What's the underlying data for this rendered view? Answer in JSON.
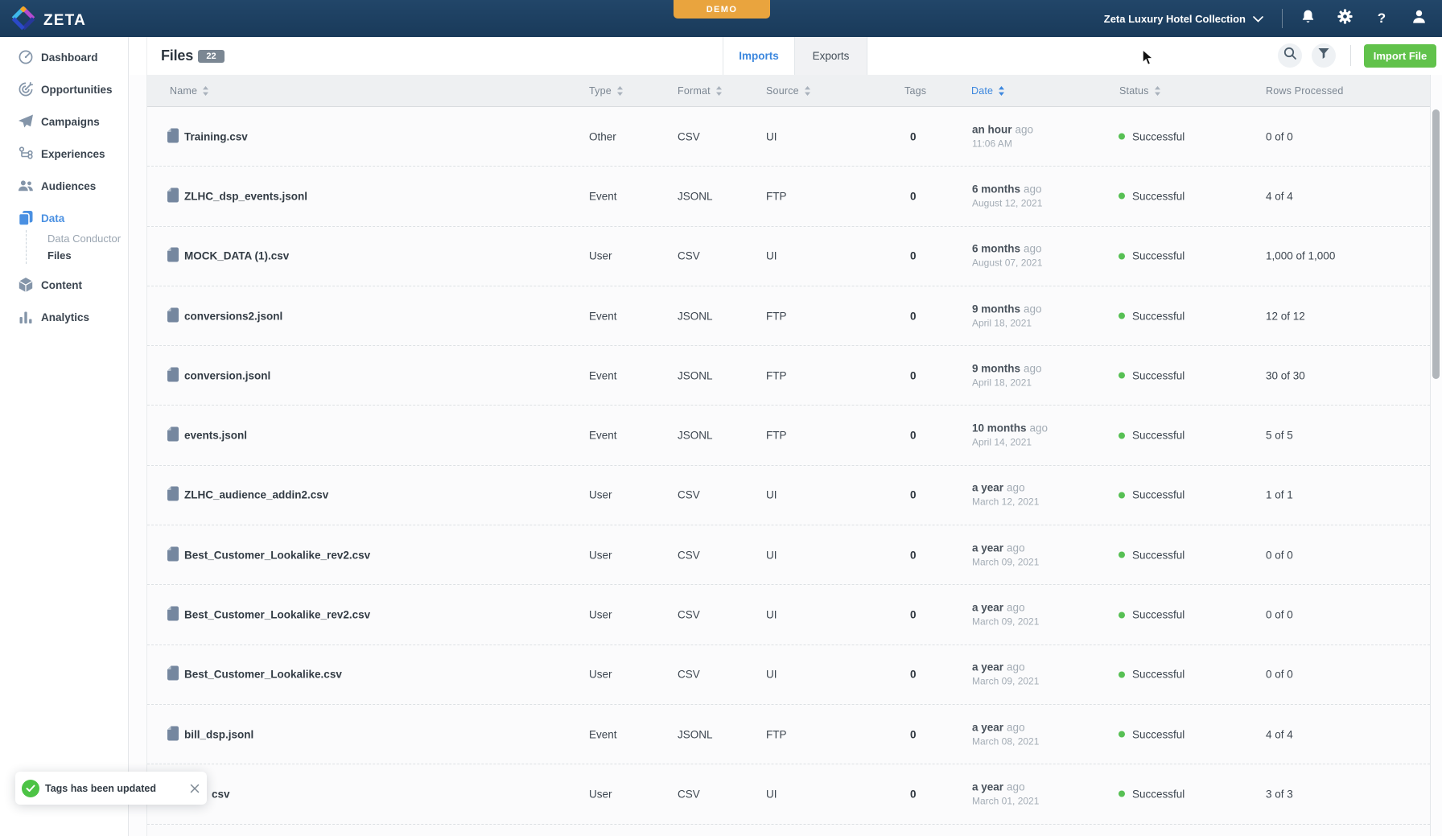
{
  "topbar": {
    "brand": "ZETA",
    "demo_label": "DEMO",
    "account_name": "Zeta Luxury Hotel Collection",
    "icons": [
      "notifications",
      "settings",
      "help",
      "user"
    ]
  },
  "sidebar": {
    "items": [
      {
        "label": "Dashboard",
        "icon": "dashboard"
      },
      {
        "label": "Opportunities",
        "icon": "opportunities"
      },
      {
        "label": "Campaigns",
        "icon": "campaigns"
      },
      {
        "label": "Experiences",
        "icon": "experiences"
      },
      {
        "label": "Audiences",
        "icon": "audiences"
      },
      {
        "label": "Data",
        "icon": "data",
        "active": true,
        "children": [
          {
            "label": "Data Conductor",
            "active": false
          },
          {
            "label": "Files",
            "active": true
          }
        ]
      },
      {
        "label": "Content",
        "icon": "content"
      },
      {
        "label": "Analytics",
        "icon": "analytics"
      }
    ]
  },
  "header": {
    "title": "Files",
    "count": "22",
    "tabs": [
      {
        "label": "Imports",
        "active": true
      },
      {
        "label": "Exports",
        "active": false
      }
    ],
    "import_label": "Import File"
  },
  "table": {
    "columns": [
      {
        "key": "name",
        "label": "Name",
        "sortable": true,
        "sorted": false
      },
      {
        "key": "type",
        "label": "Type",
        "sortable": true,
        "sorted": false
      },
      {
        "key": "format",
        "label": "Format",
        "sortable": true,
        "sorted": false
      },
      {
        "key": "source",
        "label": "Source",
        "sortable": true,
        "sorted": false
      },
      {
        "key": "tags",
        "label": "Tags",
        "sortable": false,
        "sorted": false
      },
      {
        "key": "date",
        "label": "Date",
        "sortable": true,
        "sorted": true
      },
      {
        "key": "status",
        "label": "Status",
        "sortable": true,
        "sorted": false
      },
      {
        "key": "rows",
        "label": "Rows Processed",
        "sortable": false,
        "sorted": false
      }
    ],
    "rows": [
      {
        "name": "Training.csv",
        "type": "Other",
        "format": "CSV",
        "source": "UI",
        "tags": "0",
        "date_rel": "an hour",
        "date_suffix": "ago",
        "date_abs": "11:06 AM",
        "status": "Successful",
        "rows_processed": "0 of 0"
      },
      {
        "name": "ZLHC_dsp_events.jsonl",
        "type": "Event",
        "format": "JSONL",
        "source": "FTP",
        "tags": "0",
        "date_rel": "6 months",
        "date_suffix": "ago",
        "date_abs": "August 12, 2021",
        "status": "Successful",
        "rows_processed": "4 of 4"
      },
      {
        "name": "MOCK_DATA (1).csv",
        "type": "User",
        "format": "CSV",
        "source": "UI",
        "tags": "0",
        "date_rel": "6 months",
        "date_suffix": "ago",
        "date_abs": "August 07, 2021",
        "status": "Successful",
        "rows_processed": "1,000 of 1,000"
      },
      {
        "name": "conversions2.jsonl",
        "type": "Event",
        "format": "JSONL",
        "source": "FTP",
        "tags": "0",
        "date_rel": "9 months",
        "date_suffix": "ago",
        "date_abs": "April 18, 2021",
        "status": "Successful",
        "rows_processed": "12 of 12"
      },
      {
        "name": "conversion.jsonl",
        "type": "Event",
        "format": "JSONL",
        "source": "FTP",
        "tags": "0",
        "date_rel": "9 months",
        "date_suffix": "ago",
        "date_abs": "April 18, 2021",
        "status": "Successful",
        "rows_processed": "30 of 30"
      },
      {
        "name": "events.jsonl",
        "type": "Event",
        "format": "JSONL",
        "source": "FTP",
        "tags": "0",
        "date_rel": "10 months",
        "date_suffix": "ago",
        "date_abs": "April 14, 2021",
        "status": "Successful",
        "rows_processed": "5 of 5"
      },
      {
        "name": "ZLHC_audience_addin2.csv",
        "type": "User",
        "format": "CSV",
        "source": "UI",
        "tags": "0",
        "date_rel": "a year",
        "date_suffix": "ago",
        "date_abs": "March 12, 2021",
        "status": "Successful",
        "rows_processed": "1 of 1"
      },
      {
        "name": "Best_Customer_Lookalike_rev2.csv",
        "type": "User",
        "format": "CSV",
        "source": "UI",
        "tags": "0",
        "date_rel": "a year",
        "date_suffix": "ago",
        "date_abs": "March 09, 2021",
        "status": "Successful",
        "rows_processed": "0 of 0"
      },
      {
        "name": "Best_Customer_Lookalike_rev2.csv",
        "type": "User",
        "format": "CSV",
        "source": "UI",
        "tags": "0",
        "date_rel": "a year",
        "date_suffix": "ago",
        "date_abs": "March 09, 2021",
        "status": "Successful",
        "rows_processed": "0 of 0"
      },
      {
        "name": "Best_Customer_Lookalike.csv",
        "type": "User",
        "format": "CSV",
        "source": "UI",
        "tags": "0",
        "date_rel": "a year",
        "date_suffix": "ago",
        "date_abs": "March 09, 2021",
        "status": "Successful",
        "rows_processed": "0 of 0"
      },
      {
        "name": "bill_dsp.jsonl",
        "type": "Event",
        "format": "JSONL",
        "source": "FTP",
        "tags": "0",
        "date_rel": "a year",
        "date_suffix": "ago",
        "date_abs": "March 08, 2021",
        "status": "Successful",
        "rows_processed": "4 of 4"
      },
      {
        "name": "csv",
        "partially_hidden": true,
        "type": "User",
        "format": "CSV",
        "source": "UI",
        "tags": "0",
        "date_rel": "a year",
        "date_suffix": "ago",
        "date_abs": "March 01, 2021",
        "status": "Successful",
        "rows_processed": "3 of 3"
      }
    ]
  },
  "toast": {
    "message": "Tags has been updated"
  },
  "colors": {
    "accent_blue": "#3c87de",
    "success_green": "#57c054",
    "button_green": "#61c24b",
    "demo_orange": "#e9a43e",
    "navbar_navy": "#1e4163"
  }
}
